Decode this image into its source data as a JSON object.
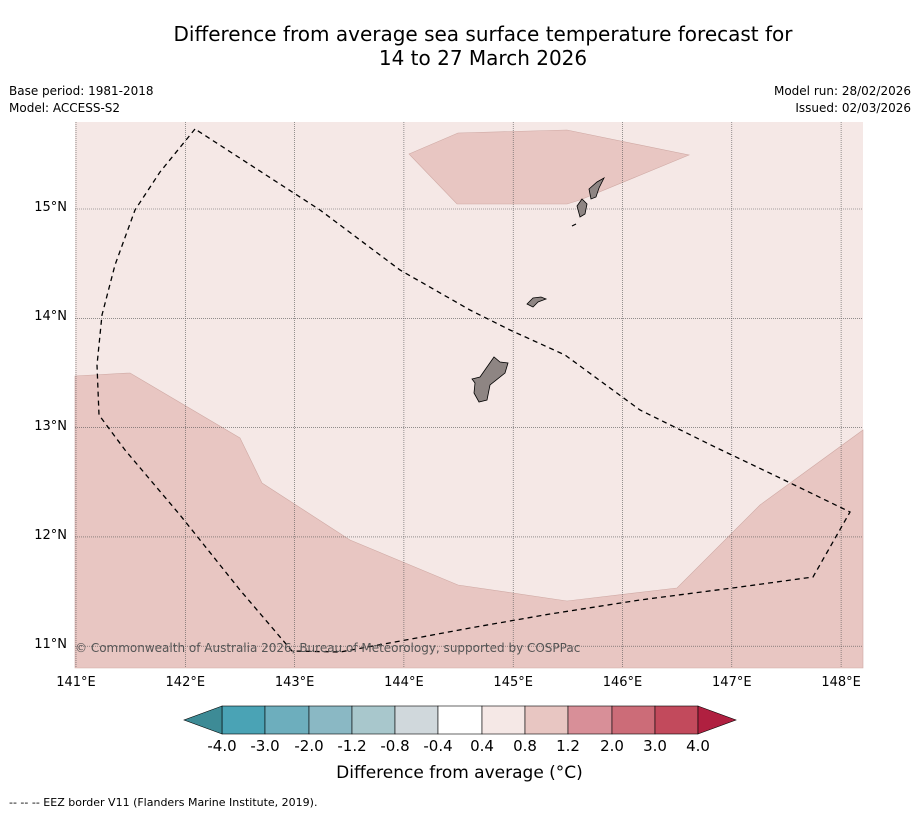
{
  "title": {
    "line1": "Difference from average sea surface temperature forecast for",
    "line2": "14 to 27 March 2026"
  },
  "meta": {
    "base_period": "Base period: 1981-2018",
    "model": "Model: ACCESS-S2",
    "model_run": "Model run: 28/02/2026",
    "issued": "Issued: 02/03/2026"
  },
  "copyright": "© Commonwealth of Australia 2026, Bureau of Meteorology, supported by COSPPac",
  "axes": {
    "lon_labels": [
      "141°E",
      "142°E",
      "143°E",
      "144°E",
      "145°E",
      "146°E",
      "147°E",
      "148°E"
    ],
    "lat_labels": [
      "15°N",
      "14°N",
      "13°N",
      "12°N",
      "11°N"
    ],
    "lon_values": [
      141,
      142,
      143,
      144,
      145,
      146,
      147,
      148
    ],
    "lat_values": [
      15,
      14,
      13,
      12,
      11
    ]
  },
  "colorbar": {
    "title": "Difference from average (°C)",
    "tick_labels": [
      "-4.0",
      "-3.0",
      "-2.0",
      "-1.2",
      "-0.8",
      "-0.4",
      "0.4",
      "0.8",
      "1.2",
      "2.0",
      "3.0",
      "4.0"
    ],
    "colors": [
      "#4aa3b5",
      "#6daebd",
      "#8ab8c4",
      "#a8c7cc",
      "#d0d8dc",
      "#ffffff",
      "#f5e8e6",
      "#e8c6c2",
      "#d88f98",
      "#cc6c78",
      "#c24a5c"
    ],
    "under_color": "#3d8b96",
    "over_color": "#b02040"
  },
  "legend": {
    "footer": "--  --  -- EEZ border V11 (Flanders Marine Institute, 2019)."
  }
}
